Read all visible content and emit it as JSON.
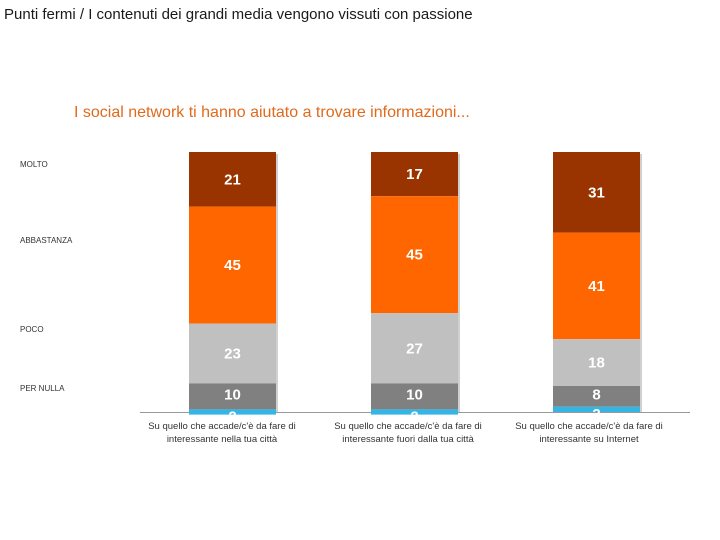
{
  "page": {
    "title": "Punti fermi / I contenuti dei grandi media vengono vissuti con passione"
  },
  "chart_data": {
    "type": "bar",
    "stacked": true,
    "title": "I social network ti hanno aiutato a trovare informazioni...",
    "xlabel": "",
    "ylabel": "",
    "ylim": [
      0,
      100
    ],
    "grid": false,
    "categories": [
      "Su quello che accade/c'è da fare di interessante nella tua città",
      "Su quello che accade/c'è da fare di interessante fuori dalla tua città",
      "Su quello che accade/c'è da fare di interessante su Internet"
    ],
    "series": [
      {
        "name": "MOLTO",
        "color": "#993300",
        "values": [
          21,
          17,
          31
        ]
      },
      {
        "name": "ABBASTANZA",
        "color": "#ff6600",
        "values": [
          45,
          45,
          41
        ]
      },
      {
        "name": "POCO",
        "color": "#c0c0c0",
        "values": [
          23,
          27,
          18
        ]
      },
      {
        "name": "PER NULLA",
        "color": "#808080",
        "values": [
          10,
          10,
          8
        ]
      },
      {
        "name": "",
        "color": "#33b5e5",
        "values": [
          2,
          2,
          2
        ]
      }
    ]
  }
}
